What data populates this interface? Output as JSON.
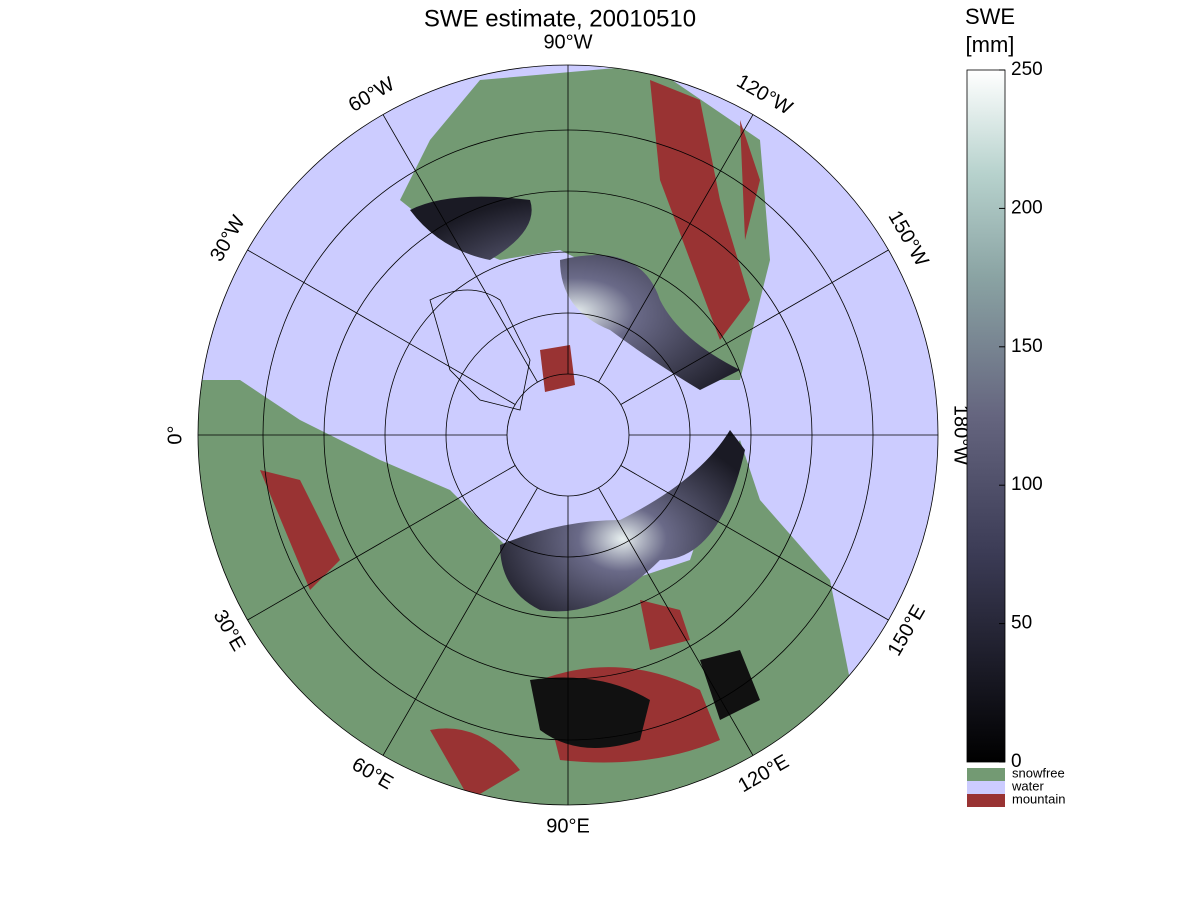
{
  "map": {
    "title": "SWE estimate, 20010510",
    "longitude_labels": [
      "90°W",
      "120°W",
      "150°W",
      "180°W",
      "150°E",
      "120°E",
      "90°E",
      "60°E",
      "30°E",
      "0°",
      "30°W",
      "60°W"
    ]
  },
  "colorbar": {
    "title": [
      "SWE",
      "[mm]"
    ],
    "lim": [
      0,
      250
    ],
    "ticks": [
      0,
      50,
      100,
      150,
      200,
      250
    ]
  },
  "legend": [
    {
      "name": "snowfree",
      "color": "#739a73"
    },
    {
      "name": "water",
      "color": "#ccccff"
    },
    {
      "name": "mountain",
      "color": "#993333"
    }
  ]
}
